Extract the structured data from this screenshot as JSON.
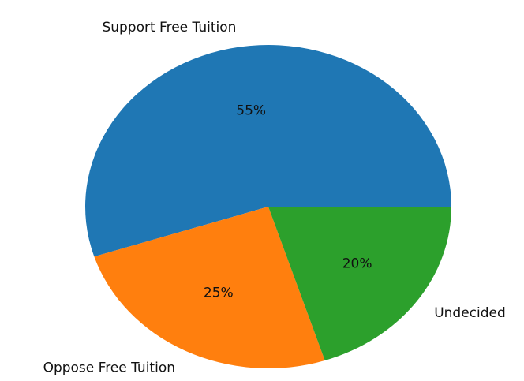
{
  "chart_data": {
    "type": "pie",
    "title": "",
    "slices": [
      {
        "label": "Support Free Tuition",
        "value": 55,
        "pct_label": "55%",
        "color": "#1f77b4"
      },
      {
        "label": "Oppose Free Tuition",
        "value": 25,
        "pct_label": "25%",
        "color": "#ff7f0e"
      },
      {
        "label": "Undecided",
        "value": 20,
        "pct_label": "20%",
        "color": "#2ca02c"
      }
    ],
    "start_angle_deg": 0,
    "direction": "counterclockwise",
    "legend": "none"
  }
}
